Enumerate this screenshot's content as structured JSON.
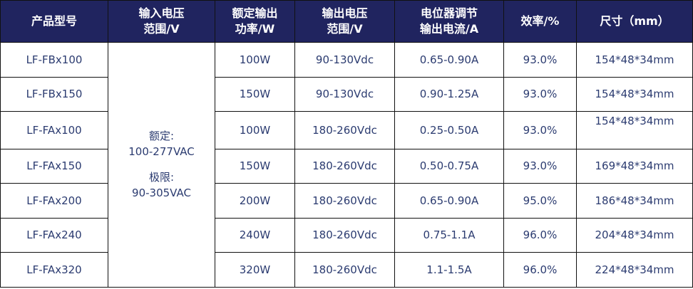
{
  "header_bg": "#20245f",
  "text_color": "#2b3b70",
  "columns_lines": [
    [
      "产品型号"
    ],
    [
      "输入电压",
      "范围/V"
    ],
    [
      "额定输出",
      "功率/W"
    ],
    [
      "输出电压",
      "范围/V"
    ],
    [
      "电位器调节",
      "输出电流/A"
    ],
    [
      "效率/%"
    ],
    [
      "尺寸（mm）"
    ]
  ],
  "input_voltage": {
    "rated_label": "额定:",
    "rated_value": "100-277VAC",
    "limit_label": "极限:",
    "limit_value": "90-305VAC"
  },
  "rows": [
    {
      "model": "LF-FBx100",
      "power": "100W",
      "vout": "90-130Vdc",
      "current": "0.65-0.90A",
      "eff": "93.0%",
      "size": "154*48*34mm"
    },
    {
      "model": "LF-FBx150",
      "power": "150W",
      "vout": "90-130Vdc",
      "current": "0.90-1.25A",
      "eff": "93.0%",
      "size": "154*48*34mm"
    },
    {
      "model": "LF-FAx100",
      "power": "100W",
      "vout": "180-260Vdc",
      "current": "0.25-0.50A",
      "eff": "93.0%",
      "size": "154*48*34mm"
    },
    {
      "model": "LF-FAx150",
      "power": "150W",
      "vout": "180-260Vdc",
      "current": "0.50-0.75A",
      "eff": "93.0%",
      "size": "169*48*34mm"
    },
    {
      "model": "LF-FAx200",
      "power": "200W",
      "vout": "180-260Vdc",
      "current": "0.65-0.90A",
      "eff": "95.0%",
      "size": "186*48*34mm"
    },
    {
      "model": "LF-FAx240",
      "power": "240W",
      "vout": "180-260Vdc",
      "current": "0.75-1.1A",
      "eff": "96.0%",
      "size": "204*48*34mm"
    },
    {
      "model": "LF-FAx320",
      "power": "320W",
      "vout": "180-260Vdc",
      "current": "1.1-1.5A",
      "eff": "96.0%",
      "size": "224*48*34mm"
    }
  ]
}
